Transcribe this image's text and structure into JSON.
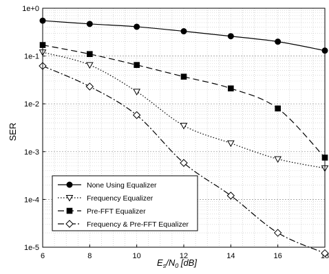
{
  "chart_data": {
    "type": "line",
    "xlabel": "E_s/N_0 [dB]",
    "xlabel_main": "E",
    "xlabel_sub1": "s",
    "xlabel_mid": "/N",
    "xlabel_sub2": "0",
    "xlabel_unit": " [dB]",
    "ylabel": "SER",
    "y_scale": "log",
    "xlim": [
      6,
      18
    ],
    "ylim": [
      1e-05,
      1
    ],
    "xticks": [
      6,
      8,
      10,
      12,
      14,
      16,
      18
    ],
    "xtick_labels": [
      "6",
      "8",
      "10",
      "12",
      "14",
      "16",
      "18"
    ],
    "yticks": [
      1,
      0.1,
      0.01,
      0.001,
      0.0001,
      1e-05
    ],
    "ytick_labels": [
      "1e+0",
      "1e-1",
      "1e-2",
      "1e-3",
      "1e-4",
      "1e-5"
    ],
    "grid": true,
    "legend_position": "bottom-left",
    "series": [
      {
        "name": "None Using Equalizer",
        "marker": "circle-filled",
        "line_style": "solid",
        "x": [
          6,
          8,
          10,
          12,
          14,
          16,
          18
        ],
        "y": [
          0.55,
          0.47,
          0.41,
          0.33,
          0.26,
          0.2,
          0.13
        ]
      },
      {
        "name": "Frequency Equalizer",
        "marker": "triangle-down-open",
        "line_style": "dotted",
        "x": [
          6,
          8,
          10,
          12,
          14,
          16,
          18
        ],
        "y": [
          0.12,
          0.065,
          0.018,
          0.0035,
          0.0015,
          0.0007,
          0.00045
        ]
      },
      {
        "name": "Pre-FFT Equalizer",
        "marker": "square-filled",
        "line_style": "dashed",
        "x": [
          6,
          8,
          10,
          12,
          14,
          16,
          18
        ],
        "y": [
          0.17,
          0.11,
          0.065,
          0.037,
          0.021,
          0.008,
          0.00075
        ]
      },
      {
        "name": "Frequency & Pre-FFT Equalizer",
        "marker": "diamond-open",
        "line_style": "dash-dot",
        "x": [
          6,
          8,
          10,
          12,
          14,
          16,
          18
        ],
        "y": [
          0.062,
          0.023,
          0.0058,
          0.00058,
          0.00012,
          2e-05,
          7.5e-06
        ]
      }
    ]
  }
}
